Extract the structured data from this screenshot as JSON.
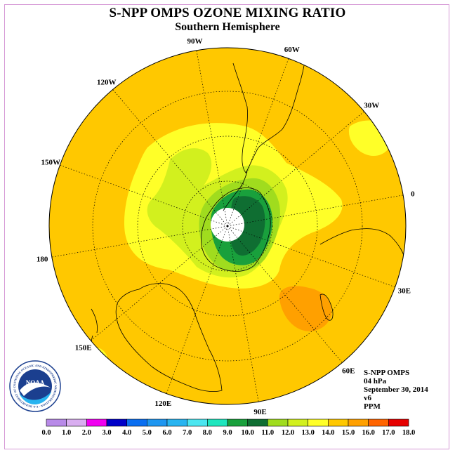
{
  "title": "S-NPP OMPS OZONE MIXING RATIO",
  "subtitle": "Southern Hemisphere",
  "longitude_labels": [
    "90W",
    "60W",
    "30W",
    "0",
    "30E",
    "60E",
    "90E",
    "120E",
    "150E",
    "180",
    "150W",
    "120W"
  ],
  "info": {
    "instrument": "S-NPP OMPS",
    "level": "04 hPa",
    "date": "September 30, 2014",
    "version": "v6",
    "units": "PPM"
  },
  "colorbar": {
    "ticks": [
      "0.0",
      "1.0",
      "2.0",
      "3.0",
      "4.0",
      "5.0",
      "6.0",
      "7.0",
      "8.0",
      "9.0",
      "10.0",
      "11.0",
      "12.0",
      "13.0",
      "14.0",
      "15.0",
      "16.0",
      "17.0",
      "18.0"
    ],
    "colors": [
      "#b88ae8",
      "#d9aef0",
      "#f000f0",
      "#0000c8",
      "#0a6ef0",
      "#1e96f0",
      "#28b4f0",
      "#4ce6f0",
      "#1ee6be",
      "#19a03c",
      "#0f6e32",
      "#a0dc1e",
      "#d2f01e",
      "#ffff28",
      "#ffc800",
      "#ffa000",
      "#ff6400",
      "#e60000",
      "#8c5a3c"
    ]
  },
  "logo": {
    "text": "NOAA",
    "ring_text": "NATIONAL OCEANIC AND ATMOSPHERIC ADMINISTRATION · U.S. DEPARTMENT OF COMMERCE"
  }
}
